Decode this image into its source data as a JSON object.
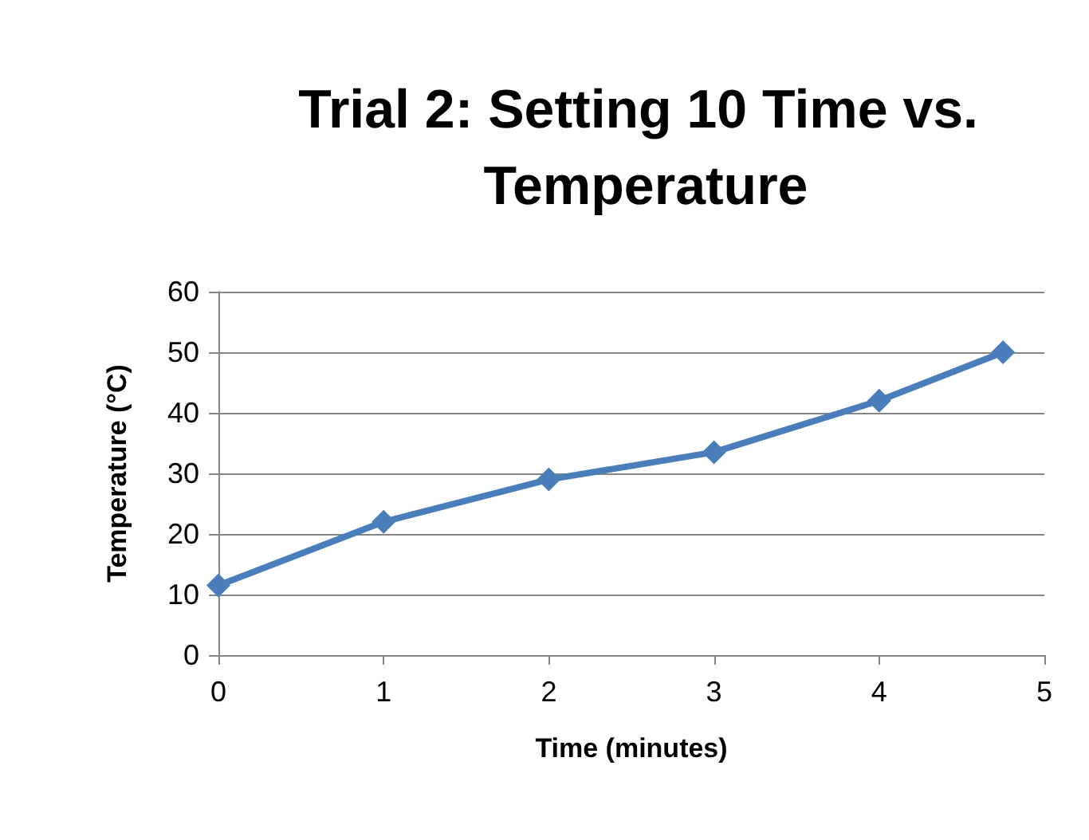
{
  "chart_data": {
    "type": "line",
    "title": "Trial 2: Setting 10 Time vs. Temperature",
    "xlabel": "Time (minutes)",
    "ylabel": "Temperature (°C)",
    "x": [
      0,
      1,
      2,
      3,
      4,
      4.75
    ],
    "series": [
      {
        "color": "#4a7ebb",
        "values": [
          11.5,
          22,
          29,
          33.5,
          42,
          50
        ]
      }
    ],
    "xlim": [
      0,
      5
    ],
    "xticks": [
      0,
      1,
      2,
      3,
      4,
      5
    ],
    "ylim": [
      0,
      60
    ],
    "yticks": [
      0,
      10,
      20,
      30,
      40,
      50,
      60
    ],
    "grid": "y",
    "marker": "diamond",
    "line_style": "solid"
  }
}
